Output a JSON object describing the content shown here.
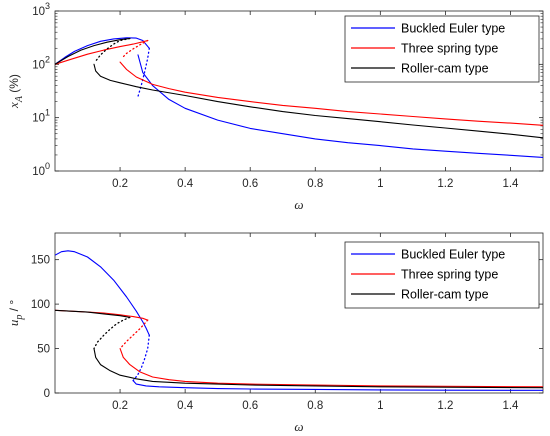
{
  "chart_data": [
    {
      "type": "line",
      "title": "",
      "xlabel": "ω",
      "ylabel": "x_A (%)",
      "ylabel_parts": {
        "main": "x",
        "sub": "A",
        "unit": "(%)"
      },
      "yscale": "log",
      "xlim": [
        0,
        1.5
      ],
      "ylim": [
        1,
        1000
      ],
      "xticks": [
        0.2,
        0.4,
        0.6,
        0.8,
        1.0,
        1.2,
        1.4
      ],
      "xtick_labels": [
        "0.2",
        "0.4",
        "0.6",
        "0.8",
        "1",
        "1.2",
        "1.4"
      ],
      "yticks": [
        1,
        10,
        100,
        1000
      ],
      "ytick_labels": [
        {
          "base": "10",
          "exp": "0"
        },
        {
          "base": "10",
          "exp": "1"
        },
        {
          "base": "10",
          "exp": "2"
        },
        {
          "base": "10",
          "exp": "3"
        }
      ],
      "grid": false,
      "legend_position": "top-right",
      "series": [
        {
          "name": "Buckled Euler type",
          "color": "#0000ff",
          "segments": [
            {
              "style": "solid",
              "x": [
                0.0,
                0.03,
                0.06,
                0.1,
                0.14,
                0.18,
                0.22,
                0.25,
                0.27,
                0.29
              ],
              "y": [
                100,
                135,
                175,
                225,
                270,
                300,
                315,
                310,
                280,
                200
              ]
            },
            {
              "style": "dotted",
              "x": [
                0.29,
                0.285,
                0.275,
                0.265,
                0.255
              ],
              "y": [
                200,
                130,
                70,
                40,
                25
              ]
            },
            {
              "style": "solid",
              "x": [
                0.255,
                0.27,
                0.3,
                0.35,
                0.4,
                0.5,
                0.6,
                0.7,
                0.8,
                0.9,
                1.0,
                1.1,
                1.2,
                1.3,
                1.4,
                1.5
              ],
              "y": [
                150,
                70,
                40,
                22,
                15,
                9,
                6.3,
                5.0,
                4.0,
                3.4,
                3.0,
                2.6,
                2.35,
                2.15,
                1.97,
                1.8
              ]
            }
          ]
        },
        {
          "name": "Three spring type",
          "color": "#ff0000",
          "segments": [
            {
              "style": "solid",
              "x": [
                0.0,
                0.05,
                0.1,
                0.15,
                0.2,
                0.24,
                0.27,
                0.285
              ],
              "y": [
                100,
                125,
                155,
                185,
                215,
                240,
                265,
                280
              ]
            },
            {
              "style": "dotted",
              "x": [
                0.285,
                0.275,
                0.26,
                0.24,
                0.22,
                0.205
              ],
              "y": [
                280,
                260,
                230,
                195,
                160,
                130
              ]
            },
            {
              "style": "solid",
              "x": [
                0.2,
                0.22,
                0.25,
                0.3,
                0.35,
                0.4,
                0.5,
                0.6,
                0.7,
                0.8,
                0.9,
                1.0,
                1.1,
                1.2,
                1.3,
                1.4,
                1.5
              ],
              "y": [
                110,
                80,
                58,
                42,
                35,
                30,
                24,
                20,
                17,
                15,
                13,
                11.7,
                10.5,
                9.5,
                8.6,
                7.9,
                7.2
              ]
            }
          ]
        },
        {
          "name": "Roller-cam type",
          "color": "#000000",
          "segments": [
            {
              "style": "solid",
              "x": [
                0.0,
                0.04,
                0.08,
                0.12,
                0.16,
                0.2,
                0.23
              ],
              "y": [
                100,
                140,
                185,
                225,
                260,
                290,
                305
              ]
            },
            {
              "style": "dotted",
              "x": [
                0.23,
                0.2,
                0.18,
                0.16,
                0.14,
                0.125
              ],
              "y": [
                305,
                280,
                240,
                195,
                150,
                115
              ]
            },
            {
              "style": "solid",
              "x": [
                0.12,
                0.125,
                0.14,
                0.17,
                0.2,
                0.25,
                0.3,
                0.4,
                0.5,
                0.6,
                0.7,
                0.8,
                0.9,
                1.0,
                1.1,
                1.2,
                1.3,
                1.4,
                1.5
              ],
              "y": [
                100,
                75,
                60,
                50,
                45,
                38,
                33,
                26,
                20,
                16,
                13,
                11,
                9.6,
                8.4,
                7.3,
                6.4,
                5.6,
                4.9,
                4.2
              ]
            }
          ]
        }
      ]
    },
    {
      "type": "line",
      "title": "",
      "xlabel": "ω",
      "ylabel": "u_p / °",
      "ylabel_parts": {
        "main": "u",
        "sub": "p",
        "unit": "/ °"
      },
      "yscale": "linear",
      "xlim": [
        0,
        1.5
      ],
      "ylim": [
        0,
        180
      ],
      "xticks": [
        0.2,
        0.4,
        0.6,
        0.8,
        1.0,
        1.2,
        1.4
      ],
      "xtick_labels": [
        "0.2",
        "0.4",
        "0.6",
        "0.8",
        "1",
        "1.2",
        "1.4"
      ],
      "yticks": [
        0,
        50,
        100,
        150
      ],
      "ytick_labels": [
        "0",
        "50",
        "100",
        "150"
      ],
      "grid": false,
      "legend_position": "top-right",
      "series": [
        {
          "name": "Buckled Euler type",
          "color": "#0000ff",
          "segments": [
            {
              "style": "solid",
              "x": [
                0.0,
                0.02,
                0.04,
                0.06,
                0.1,
                0.14,
                0.18,
                0.22,
                0.25,
                0.27,
                0.28,
                0.29
              ],
              "y": [
                155,
                159,
                160,
                159,
                153,
                142,
                127,
                108,
                92,
                80,
                73,
                65
              ]
            },
            {
              "style": "dotted",
              "x": [
                0.29,
                0.285,
                0.275,
                0.265,
                0.255,
                0.245,
                0.24
              ],
              "y": [
                65,
                50,
                38,
                28,
                21,
                16,
                14
              ]
            },
            {
              "style": "solid",
              "x": [
                0.24,
                0.25,
                0.28,
                0.32,
                0.4,
                0.5,
                0.6,
                0.8,
                1.0,
                1.2,
                1.5
              ],
              "y": [
                14,
                10,
                8,
                7,
                6,
                5,
                4.5,
                4,
                3.5,
                3.2,
                3
              ]
            }
          ]
        },
        {
          "name": "Three spring type",
          "color": "#ff0000",
          "segments": [
            {
              "style": "solid",
              "x": [
                0.0,
                0.05,
                0.1,
                0.15,
                0.2,
                0.24,
                0.27,
                0.285
              ],
              "y": [
                93,
                92,
                91,
                90,
                88,
                86,
                84,
                82
              ]
            },
            {
              "style": "dotted",
              "x": [
                0.285,
                0.275,
                0.26,
                0.24,
                0.22,
                0.205
              ],
              "y": [
                82,
                78,
                72,
                65,
                58,
                52
              ]
            },
            {
              "style": "solid",
              "x": [
                0.2,
                0.21,
                0.23,
                0.26,
                0.3,
                0.35,
                0.4,
                0.5,
                0.6,
                0.8,
                1.0,
                1.2,
                1.5
              ],
              "y": [
                50,
                40,
                32,
                24,
                18,
                15,
                13,
                11,
                10,
                9,
                8,
                7.5,
                7
              ]
            }
          ]
        },
        {
          "name": "Roller-cam type",
          "color": "#000000",
          "segments": [
            {
              "style": "solid",
              "x": [
                0.0,
                0.05,
                0.1,
                0.15,
                0.2,
                0.23
              ],
              "y": [
                93,
                92,
                91,
                89,
                87,
                85
              ]
            },
            {
              "style": "dotted",
              "x": [
                0.23,
                0.21,
                0.19,
                0.17,
                0.15,
                0.13,
                0.12
              ],
              "y": [
                85,
                82,
                78,
                72,
                65,
                57,
                50
              ]
            },
            {
              "style": "solid",
              "x": [
                0.12,
                0.125,
                0.14,
                0.17,
                0.2,
                0.25,
                0.3,
                0.4,
                0.5,
                0.6,
                0.8,
                1.0,
                1.2,
                1.5
              ],
              "y": [
                50,
                40,
                32,
                25,
                20,
                16,
                13,
                11,
                10,
                9,
                8,
                7,
                6.5,
                6
              ]
            }
          ]
        }
      ]
    }
  ]
}
